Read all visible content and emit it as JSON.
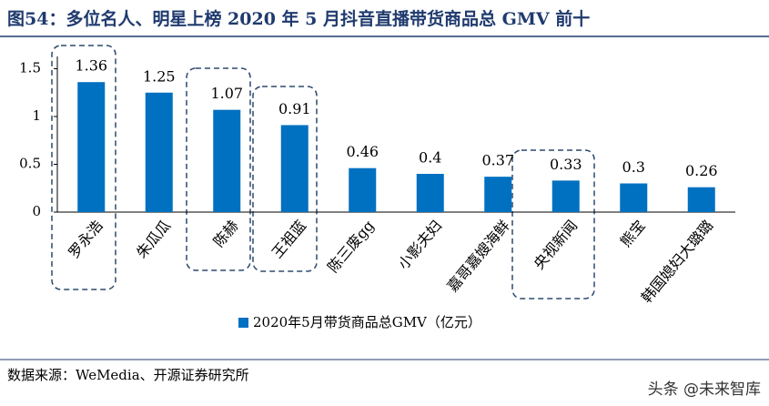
{
  "title": "图54：多位名人、明星上榜 2020 年 5 月抖音直播带货商品总 GMV 前十",
  "source": "数据来源：WeMedia、开源证券研究所",
  "watermark": "头条 @未来智库",
  "chart_data": {
    "type": "bar",
    "categories": [
      "罗永浩",
      "朱瓜瓜",
      "陈赫",
      "王祖蓝",
      "陈三废gg",
      "小影夫妇",
      "嘉哥嘉嫂海鲜",
      "央视新闻",
      "熊宝",
      "韩国媳妇大璐璐"
    ],
    "series": [
      {
        "name": "2020年5月带货商品总GMV（亿元）",
        "color": "#0070c0",
        "values": [
          1.36,
          1.25,
          1.07,
          0.91,
          0.46,
          0.4,
          0.37,
          0.33,
          0.3,
          0.26
        ]
      }
    ],
    "ylim": [
      0,
      1.6
    ],
    "yticks": [
      0,
      0.5,
      1,
      1.5
    ],
    "legend": "bottom"
  }
}
